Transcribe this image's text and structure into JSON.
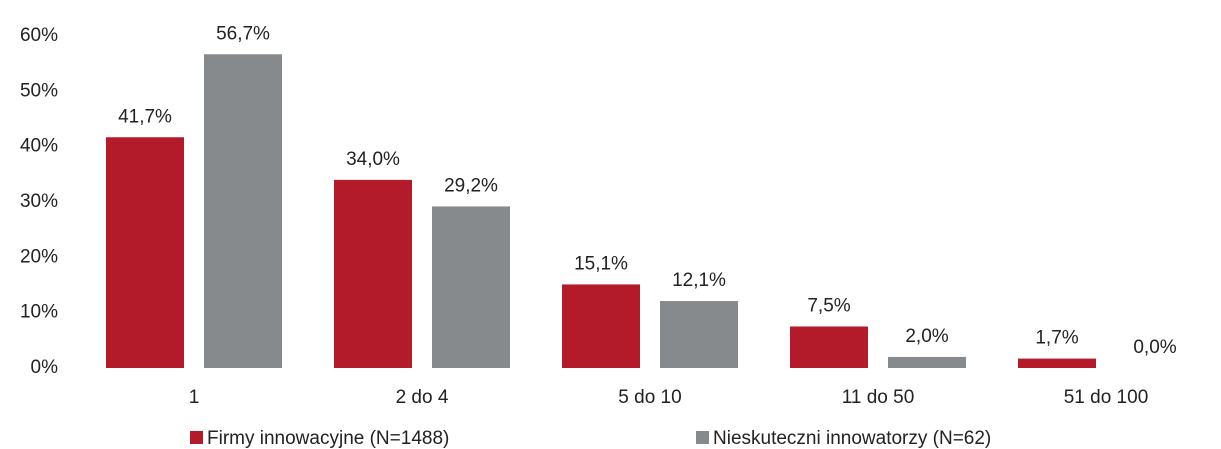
{
  "chart_data": {
    "type": "bar",
    "categories": [
      "1",
      "2 do 4",
      "5 do 10",
      "11 do 50",
      "51 do 100"
    ],
    "series": [
      {
        "name": "Firmy innowacyjne (N=1488)",
        "color": "#b31b2b",
        "values": [
          41.7,
          34.0,
          15.1,
          7.5,
          1.7
        ],
        "value_labels": [
          "41,7%",
          "34,0%",
          "15,1%",
          "7,5%",
          "1,7%"
        ]
      },
      {
        "name": "Nieskuteczni innowatorzy (N=62)",
        "color": "#878a8c",
        "values": [
          56.7,
          29.2,
          12.1,
          2.0,
          0.0
        ],
        "value_labels": [
          "56,7%",
          "29,2%",
          "12,1%",
          "2,0%",
          "0,0%"
        ]
      }
    ],
    "ylim": [
      0,
      60
    ],
    "yticks": [
      {
        "value": 0,
        "label": "0%"
      },
      {
        "value": 10,
        "label": "10%"
      },
      {
        "value": 20,
        "label": "20%"
      },
      {
        "value": 30,
        "label": "30%"
      },
      {
        "value": 40,
        "label": "40%"
      },
      {
        "value": 50,
        "label": "50%"
      },
      {
        "value": 60,
        "label": "60%"
      }
    ],
    "grid": false,
    "legend": "bottom"
  }
}
